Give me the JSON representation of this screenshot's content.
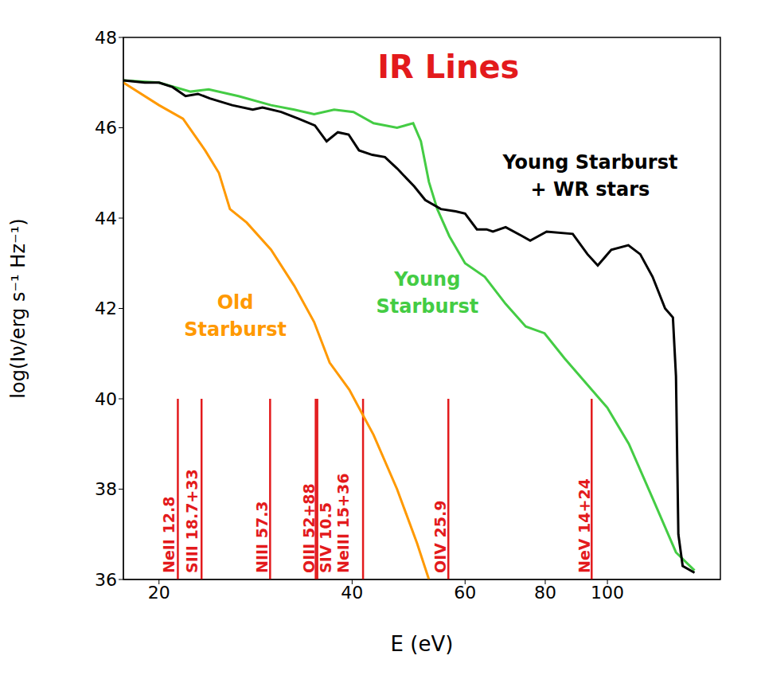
{
  "chart_data": {
    "type": "line",
    "title": "IR Lines",
    "x_label": "E (eV)",
    "y_label": "log(Iν/erg s⁻¹ Hz⁻¹)",
    "log": "x",
    "xlim": [
      17.6,
      150
    ],
    "xticks": [
      20,
      40,
      60,
      80,
      100
    ],
    "ylim": [
      36,
      48
    ],
    "yticks": [
      36,
      38,
      40,
      42,
      44,
      46,
      48
    ],
    "grid": false,
    "series": [
      {
        "name": "Old Starburst",
        "color": "#ff9900",
        "x": [
          17.6,
          20,
          21.8,
          23.6,
          24.8,
          25.8,
          27.4,
          29.9,
          32.5,
          34.9,
          36.9,
          39.6,
          43.2,
          47.0,
          50.5,
          52.7
        ],
        "values": [
          47.0,
          46.5,
          46.2,
          45.5,
          45.0,
          44.2,
          43.9,
          43.3,
          42.5,
          41.7,
          40.8,
          40.2,
          39.2,
          38.0,
          36.8,
          36.0
        ]
      },
      {
        "name": "Young Starburst",
        "color": "#44cc44",
        "x": [
          17.6,
          20,
          22.4,
          23.9,
          26.6,
          29.9,
          32.5,
          34.9,
          37.5,
          40.2,
          43.2,
          47.0,
          49.8,
          51.2,
          52.7,
          54.3,
          56.7,
          60,
          64.4,
          69.4,
          74.6,
          79.8,
          85.7,
          100,
          108,
          117.6,
          127.9,
          136.7
        ],
        "values": [
          47.05,
          47.0,
          46.8,
          46.85,
          46.7,
          46.5,
          46.4,
          46.3,
          46.4,
          46.35,
          46.1,
          46.0,
          46.1,
          45.7,
          44.8,
          44.2,
          43.6,
          43.0,
          42.7,
          42.1,
          41.6,
          41.45,
          40.9,
          39.8,
          39.0,
          37.8,
          36.6,
          36.2
        ]
      },
      {
        "name": "Young Starburst + WR stars",
        "color": "#000000",
        "x": [
          17.6,
          19,
          20,
          21,
          22,
          23,
          24,
          26,
          28,
          29,
          31,
          33,
          35,
          36.5,
          38,
          39.5,
          41,
          43,
          45,
          47,
          50,
          52,
          55,
          58,
          60,
          62.6,
          64.8,
          66.3,
          69.4,
          73.7,
          75.8,
          80.4,
          88.3,
          93.1,
          96.6,
          101.4,
          107.8,
          112.5,
          117.6,
          123,
          126.5,
          127.9,
          129,
          131,
          136.7
        ],
        "values": [
          47.05,
          47.0,
          47.0,
          46.9,
          46.7,
          46.75,
          46.65,
          46.5,
          46.4,
          46.45,
          46.35,
          46.2,
          46.05,
          45.7,
          45.9,
          45.85,
          45.5,
          45.4,
          45.35,
          45.1,
          44.7,
          44.4,
          44.2,
          44.15,
          44.1,
          43.75,
          43.75,
          43.7,
          43.8,
          43.6,
          43.5,
          43.7,
          43.65,
          43.2,
          42.95,
          43.3,
          43.4,
          43.2,
          42.7,
          42.0,
          41.8,
          40.5,
          37.0,
          36.3,
          36.15
        ]
      }
    ],
    "lines_color": "#e31a1c",
    "lines": [
      {
        "label": "NeII 12.8",
        "x": 21.4,
        "y": [
          36,
          40
        ]
      },
      {
        "label": "SIII 18.7+33",
        "x": 23.3,
        "y": [
          36,
          40
        ]
      },
      {
        "label": "NIII 57.3",
        "x": 29.8,
        "y": [
          36,
          40
        ]
      },
      {
        "label": "OIII 52+88",
        "x": 35.3,
        "y": [
          36,
          40
        ]
      },
      {
        "label": "SIV 10.5",
        "x": 35.1,
        "y": [
          36,
          40
        ]
      },
      {
        "label": "NeIII 15+36",
        "x": 41.6,
        "y": [
          36,
          40
        ]
      },
      {
        "label": "OIV 25.9",
        "x": 56.5,
        "y": [
          36,
          40
        ]
      },
      {
        "label": "NeV 14+24",
        "x": 94.5,
        "y": [
          36,
          40
        ]
      }
    ]
  }
}
